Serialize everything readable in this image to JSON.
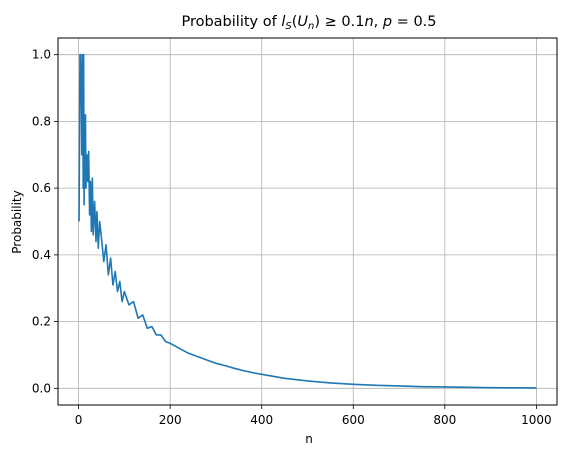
{
  "chart_data": {
    "type": "line",
    "title": "Probability of l_S(U_n) ≥ 0.1n,  p = 0.5",
    "title_parts": {
      "lead": "Probability of ",
      "l": "l",
      "S": "S",
      "open": "(",
      "U": "U",
      "n_sub": "n",
      "rel": ") ≥ 0.1",
      "n": "n",
      "sep": ",  ",
      "p": "p",
      "tail": " = 0.5"
    },
    "xlabel": "n",
    "ylabel": "Probability",
    "xlim": [
      -45,
      1045
    ],
    "ylim": [
      -0.05,
      1.05
    ],
    "xticks": [
      0,
      200,
      400,
      600,
      800,
      1000
    ],
    "xtick_labels": [
      "0",
      "200",
      "400",
      "600",
      "800",
      "1000"
    ],
    "yticks": [
      0.0,
      0.2,
      0.4,
      0.6,
      0.8,
      1.0
    ],
    "ytick_labels": [
      "0.0",
      "0.2",
      "0.4",
      "0.6",
      "0.8",
      "1.0"
    ],
    "grid": true,
    "color": "#1f77b4",
    "series": [
      {
        "x": [
          1,
          3,
          5,
          7,
          9,
          10,
          11,
          12,
          13,
          14,
          15,
          16,
          18,
          20,
          22,
          24,
          26,
          28,
          30,
          32,
          35,
          38,
          40,
          43,
          46,
          50,
          55,
          60,
          65,
          70,
          75,
          80,
          85,
          90,
          95,
          100,
          110,
          120,
          130,
          140,
          150,
          160,
          170,
          180,
          190,
          200,
          220,
          240,
          260,
          280,
          300,
          320,
          340,
          360,
          380,
          400,
          450,
          500,
          550,
          600,
          650,
          700,
          750,
          800,
          850,
          900,
          950,
          1000
        ],
        "values": [
          0.5,
          1.0,
          1.0,
          0.7,
          1.0,
          0.6,
          1.0,
          0.55,
          0.8,
          0.6,
          0.82,
          0.6,
          0.7,
          0.62,
          0.71,
          0.52,
          0.62,
          0.47,
          0.63,
          0.46,
          0.56,
          0.44,
          0.53,
          0.42,
          0.5,
          0.45,
          0.38,
          0.43,
          0.34,
          0.39,
          0.31,
          0.35,
          0.29,
          0.32,
          0.26,
          0.29,
          0.25,
          0.26,
          0.21,
          0.22,
          0.18,
          0.185,
          0.16,
          0.16,
          0.14,
          0.135,
          0.12,
          0.105,
          0.095,
          0.085,
          0.075,
          0.068,
          0.06,
          0.053,
          0.047,
          0.042,
          0.03,
          0.022,
          0.016,
          0.012,
          0.009,
          0.007,
          0.005,
          0.004,
          0.003,
          0.002,
          0.0015,
          0.001
        ]
      }
    ]
  }
}
